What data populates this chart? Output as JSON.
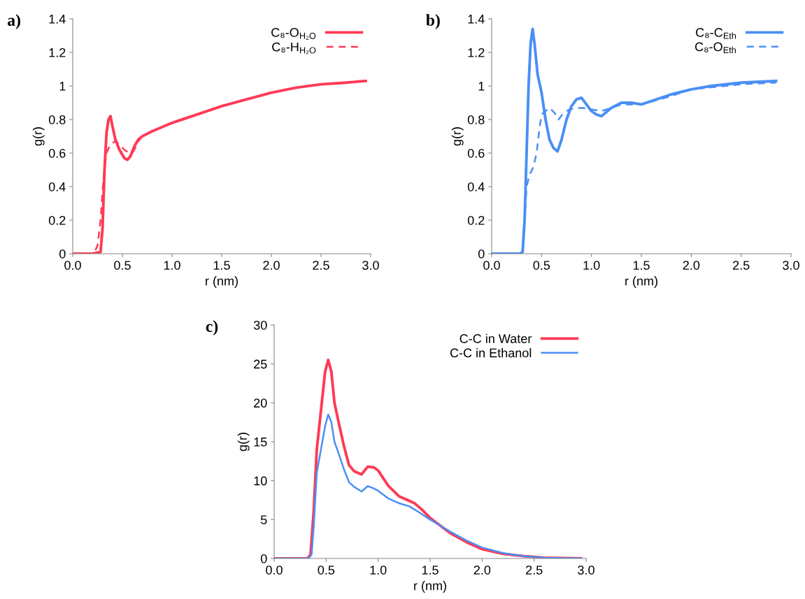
{
  "chart_data": [
    {
      "type": "line",
      "annotations": [
        "a)"
      ],
      "xlabel": "r (nm)",
      "ylabel": "g(r)",
      "xlim": [
        0,
        3
      ],
      "xticks": [
        {
          "value": 0,
          "label": "0.0"
        },
        {
          "value": 0.5,
          "label": "0.5"
        },
        {
          "value": 1,
          "label": "1.0"
        },
        {
          "value": 1.5,
          "label": "1.5"
        },
        {
          "value": 2,
          "label": "2.0"
        },
        {
          "value": 2.5,
          "label": "2.5"
        },
        {
          "value": 3,
          "label": "3.0"
        }
      ],
      "ylim": [
        0,
        1.4
      ],
      "yticks": [
        0,
        0.2,
        0.4,
        0.6,
        0.8,
        1,
        1.2,
        1.4
      ],
      "grid": false,
      "legend": "top right",
      "series": [
        {
          "name": "C₈-O$_{H₂O}$",
          "color": "#ff3a55",
          "line_style": "solid",
          "x": [
            0,
            0.2,
            0.28,
            0.3,
            0.32,
            0.34,
            0.36,
            0.38,
            0.4,
            0.43,
            0.47,
            0.52,
            0.55,
            0.58,
            0.62,
            0.66,
            0.7,
            0.8,
            1.0,
            1.25,
            1.5,
            1.75,
            2.0,
            2.25,
            2.5,
            2.75,
            2.95
          ],
          "values": [
            0,
            0,
            0.01,
            0.15,
            0.5,
            0.72,
            0.8,
            0.82,
            0.76,
            0.68,
            0.62,
            0.57,
            0.56,
            0.58,
            0.64,
            0.68,
            0.7,
            0.73,
            0.78,
            0.83,
            0.88,
            0.92,
            0.96,
            0.99,
            1.01,
            1.02,
            1.03
          ]
        },
        {
          "name": "C₈-H$_{H₂O}$",
          "color": "#ff3a55",
          "line_style": "dashed",
          "x": [
            0,
            0.2,
            0.22,
            0.25,
            0.28,
            0.31,
            0.34,
            0.37,
            0.4,
            0.43,
            0.47,
            0.52,
            0.57,
            0.6,
            0.63,
            0.66,
            0.7
          ],
          "values": [
            0,
            0,
            0.01,
            0.05,
            0.2,
            0.45,
            0.6,
            0.64,
            0.66,
            0.67,
            0.65,
            0.62,
            0.6,
            0.6,
            0.63,
            0.67,
            0.7
          ]
        }
      ]
    },
    {
      "type": "line",
      "annotations": [
        "b)"
      ],
      "xlabel": "r (nm)",
      "ylabel": "g(r)",
      "xlim": [
        0,
        3
      ],
      "xticks": [
        {
          "value": 0,
          "label": "0.0"
        },
        {
          "value": 0.5,
          "label": "0.5"
        },
        {
          "value": 1,
          "label": "1.0"
        },
        {
          "value": 1.5,
          "label": "1.5"
        },
        {
          "value": 2,
          "label": "2.0"
        },
        {
          "value": 2.5,
          "label": "2.5"
        },
        {
          "value": 3,
          "label": "3.0"
        }
      ],
      "ylim": [
        0,
        1.4
      ],
      "yticks": [
        0,
        0.2,
        0.4,
        0.6,
        0.8,
        1,
        1.2,
        1.4
      ],
      "grid": false,
      "legend": "top right",
      "series": [
        {
          "name": "C₈-C$_{Eth}$",
          "color": "#4a8ff5",
          "line_style": "solid",
          "x": [
            0,
            0.28,
            0.31,
            0.33,
            0.35,
            0.37,
            0.39,
            0.41,
            0.43,
            0.46,
            0.5,
            0.54,
            0.58,
            0.62,
            0.66,
            0.7,
            0.75,
            0.8,
            0.85,
            0.9,
            0.95,
            1.0,
            1.05,
            1.1,
            1.2,
            1.3,
            1.4,
            1.5,
            1.6,
            1.8,
            2.0,
            2.2,
            2.5,
            2.85
          ],
          "values": [
            0,
            0,
            0.01,
            0.2,
            0.6,
            1.0,
            1.25,
            1.34,
            1.25,
            1.07,
            0.96,
            0.8,
            0.68,
            0.63,
            0.61,
            0.68,
            0.8,
            0.88,
            0.92,
            0.93,
            0.89,
            0.85,
            0.83,
            0.82,
            0.87,
            0.9,
            0.9,
            0.89,
            0.91,
            0.95,
            0.98,
            1.0,
            1.02,
            1.03
          ]
        },
        {
          "name": "C₈-O$_{Eth}$",
          "color": "#4a8ff5",
          "line_style": "dashed",
          "x": [
            0,
            0.29,
            0.31,
            0.33,
            0.35,
            0.38,
            0.42,
            0.45,
            0.48,
            0.5,
            0.54,
            0.58,
            0.63,
            0.67,
            0.72,
            0.78,
            0.9,
            1.0,
            1.1,
            1.3,
            1.5,
            1.8,
            2.0,
            2.5,
            2.85
          ],
          "values": [
            0,
            0,
            0.02,
            0.2,
            0.4,
            0.47,
            0.52,
            0.6,
            0.75,
            0.83,
            0.85,
            0.87,
            0.84,
            0.8,
            0.84,
            0.86,
            0.87,
            0.86,
            0.85,
            0.89,
            0.89,
            0.94,
            0.98,
            1.01,
            1.02
          ]
        }
      ]
    },
    {
      "type": "line",
      "annotations": [
        "c)"
      ],
      "xlabel": "r (nm)",
      "ylabel": "g(r)",
      "xlim": [
        0,
        3
      ],
      "xticks": [
        {
          "value": 0,
          "label": "0.0"
        },
        {
          "value": 0.5,
          "label": "0.5"
        },
        {
          "value": 1,
          "label": "1.0"
        },
        {
          "value": 1.5,
          "label": "1.5"
        },
        {
          "value": 2,
          "label": "2.0"
        },
        {
          "value": 2.5,
          "label": "2.5"
        },
        {
          "value": 3,
          "label": "3.0"
        }
      ],
      "ylim": [
        0,
        30
      ],
      "yticks": [
        0,
        5,
        10,
        15,
        20,
        25,
        30
      ],
      "grid": false,
      "legend": "top right",
      "series": [
        {
          "name": "C-C in Water",
          "color": "#ff3a55",
          "line_style": "solid",
          "x": [
            0,
            0.32,
            0.35,
            0.38,
            0.41,
            0.45,
            0.49,
            0.52,
            0.55,
            0.58,
            0.62,
            0.67,
            0.72,
            0.77,
            0.84,
            0.9,
            0.96,
            1.0,
            1.05,
            1.1,
            1.2,
            1.3,
            1.35,
            1.42,
            1.5,
            1.6,
            1.7,
            1.85,
            2.0,
            2.2,
            2.4,
            2.6,
            2.95
          ],
          "values": [
            0,
            0,
            0.5,
            6,
            14,
            19,
            24,
            25.5,
            24,
            20,
            17.5,
            14.5,
            12,
            11.2,
            10.8,
            11.8,
            11.7,
            11.3,
            10.3,
            9.3,
            8,
            7.4,
            7.1,
            6.3,
            5.2,
            4.2,
            3.2,
            2.1,
            1.2,
            0.6,
            0.3,
            0.1,
            0
          ]
        },
        {
          "name": "C-C in Ethanol",
          "color": "#4a8ff5",
          "line_style": "solid",
          "x": [
            0,
            0.33,
            0.36,
            0.38,
            0.41,
            0.45,
            0.49,
            0.52,
            0.55,
            0.58,
            0.62,
            0.67,
            0.72,
            0.77,
            0.84,
            0.9,
            0.96,
            1.0,
            1.05,
            1.1,
            1.2,
            1.3,
            1.35,
            1.42,
            1.5,
            1.6,
            1.7,
            1.85,
            2.0,
            2.2,
            2.4,
            2.6,
            2.95
          ],
          "values": [
            0,
            0,
            0.5,
            4,
            11,
            14,
            17,
            18.5,
            17.5,
            15,
            13.5,
            11.5,
            9.8,
            9.2,
            8.6,
            9.3,
            9,
            8.7,
            8.2,
            7.7,
            7.1,
            6.7,
            6.3,
            5.7,
            5,
            4.2,
            3.4,
            2.3,
            1.4,
            0.7,
            0.3,
            0.1,
            0
          ]
        }
      ]
    }
  ]
}
